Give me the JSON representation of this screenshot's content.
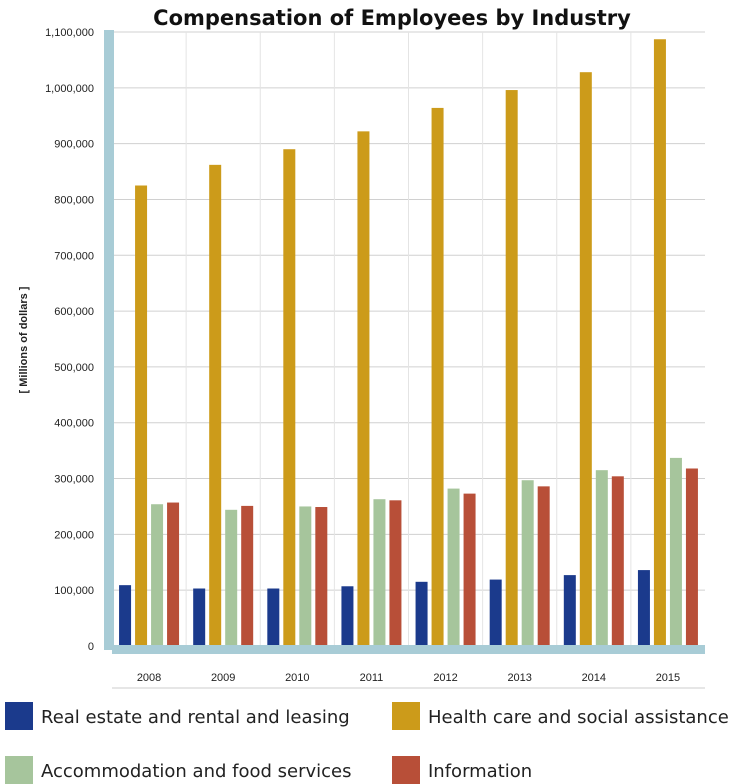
{
  "chart_data": {
    "type": "bar",
    "title": "Compensation of Employees by Industry",
    "ylabel": "[ Millions of dollars ]",
    "xlabel": "",
    "ylim": [
      0,
      1100000
    ],
    "yticks": [
      "0",
      "100,000",
      "200,000",
      "300,000",
      "400,000",
      "500,000",
      "600,000",
      "700,000",
      "800,000",
      "900,000",
      "1,000,000",
      "1,100,000"
    ],
    "categories": [
      "2008",
      "2009",
      "2010",
      "2011",
      "2012",
      "2013",
      "2014",
      "2015"
    ],
    "grid": true,
    "legend_position": "bottom",
    "series": [
      {
        "name": "Real estate and rental and leasing",
        "color": "#1b3a8c",
        "values": [
          109000,
          103000,
          103000,
          107000,
          115000,
          119000,
          127000,
          136000
        ]
      },
      {
        "name": "Health care and social assistance",
        "color": "#cc9b1a",
        "values": [
          825000,
          862000,
          890000,
          922000,
          964000,
          996000,
          1028000,
          1087000
        ]
      },
      {
        "name": "Accommodation and food services",
        "color": "#a6c59c",
        "values": [
          254000,
          244000,
          250000,
          263000,
          282000,
          297000,
          315000,
          337000
        ]
      },
      {
        "name": "Information",
        "color": "#b84f38",
        "values": [
          257000,
          251000,
          249000,
          261000,
          273000,
          286000,
          304000,
          318000
        ]
      }
    ]
  }
}
